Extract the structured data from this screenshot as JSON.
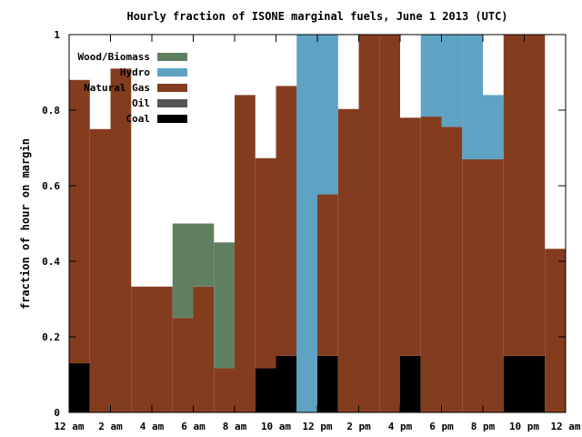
{
  "chart_data": {
    "type": "bar",
    "stacked": true,
    "title": "Hourly fraction of ISONE marginal fuels, June 1 2013 (UTC)",
    "xlabel": "",
    "ylabel": "fraction of hour on margin",
    "xlim": [
      0,
      24
    ],
    "ylim": [
      0,
      1
    ],
    "yticks": [
      "0",
      "0.2",
      "0.4",
      "0.6",
      "0.8",
      "1"
    ],
    "xticks": [
      "12 am",
      "2 am",
      "4 am",
      "6 am",
      "8 am",
      "10 am",
      "12 pm",
      "2 pm",
      "4 pm",
      "6 pm",
      "8 pm",
      "10 pm",
      "12 am"
    ],
    "grid": false,
    "legend_position": "top-left",
    "hours": [
      0,
      1,
      2,
      3,
      4,
      5,
      6,
      7,
      8,
      9,
      10,
      11,
      12,
      13,
      14,
      15,
      16,
      17,
      18,
      19,
      20,
      21,
      22,
      23
    ],
    "series": [
      {
        "name": "Coal",
        "color": "#000000",
        "values": [
          0.13,
          0,
          0,
          0,
          0,
          0,
          0,
          0,
          0,
          0.117,
          0.15,
          0,
          0.15,
          0,
          0,
          0,
          0.15,
          0,
          0,
          0,
          0,
          0.15,
          0.15,
          0
        ]
      },
      {
        "name": "Oil",
        "color": "#555555",
        "values": [
          0,
          0,
          0,
          0,
          0,
          0,
          0,
          0,
          0,
          0,
          0,
          0,
          0,
          0,
          0,
          0,
          0,
          0,
          0,
          0,
          0,
          0,
          0,
          0
        ]
      },
      {
        "name": "Natural Gas",
        "color": "#843c1f",
        "values": [
          0.75,
          0.75,
          0.91,
          0.333,
          0.333,
          0.25,
          0.333,
          0.117,
          0.84,
          0.556,
          0.714,
          0,
          0.427,
          0.803,
          1,
          1,
          0.63,
          0.783,
          0.756,
          0.67,
          0.67,
          0.85,
          0.85,
          0.433
        ]
      },
      {
        "name": "Hydro",
        "color": "#5ea2c4",
        "values": [
          0,
          0,
          0,
          0,
          0,
          0,
          0,
          0,
          0,
          0,
          0,
          1,
          0.423,
          0,
          0,
          0,
          0,
          0.217,
          0.244,
          0.33,
          0.17,
          0,
          0,
          0
        ]
      },
      {
        "name": "Wood/Biomass",
        "color": "#5f8060",
        "values": [
          0,
          0,
          0,
          0,
          0,
          0.25,
          0.167,
          0.333,
          0,
          0,
          0,
          0,
          0,
          0,
          0,
          0,
          0,
          0,
          0,
          0,
          0,
          0,
          0,
          0
        ]
      }
    ]
  }
}
